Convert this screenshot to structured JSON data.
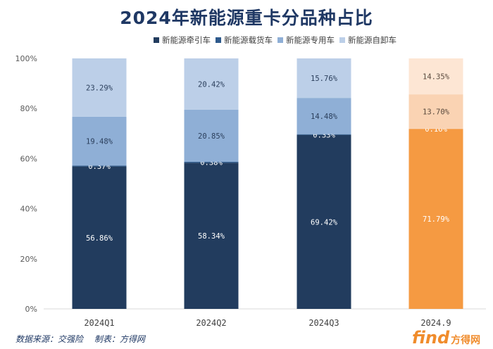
{
  "title": "2024年新能源重卡分品种占比",
  "source": {
    "data_label": "数据来源：交强险",
    "made_label": "制表：方得网"
  },
  "watermark": {
    "brand": "find",
    "cn": "方得网"
  },
  "colors": {
    "tractor": "#223c5e",
    "cargo": "#2e5a8c",
    "special": "#8fafd6",
    "dump": "#bccfe8",
    "highlight_tractor": "#f59a42",
    "highlight_cargo": "#f5ae72",
    "highlight_special": "#fad3b3",
    "highlight_dump": "#fde6d4"
  },
  "chart_data": {
    "type": "bar",
    "stacked": true,
    "title": "2024年新能源重卡分品种占比",
    "categories": [
      "2024Q1",
      "2024Q2",
      "2024Q3",
      "2024.9"
    ],
    "series": [
      {
        "name": "新能源牵引车",
        "values": [
          56.86,
          58.34,
          69.42,
          71.79
        ],
        "labels": [
          "56.86%",
          "58.34%",
          "69.42%",
          "71.79%"
        ]
      },
      {
        "name": "新能源载货车",
        "values": [
          0.37,
          0.38,
          0.33,
          0.16
        ],
        "labels": [
          "0.37%",
          "0.38%",
          "0.33%",
          "0.16%"
        ]
      },
      {
        "name": "新能源专用车",
        "values": [
          19.48,
          20.85,
          14.48,
          13.7
        ],
        "labels": [
          "19.48%",
          "20.85%",
          "14.48%",
          "13.70%"
        ]
      },
      {
        "name": "新能源自卸车",
        "values": [
          23.29,
          20.42,
          15.76,
          14.35
        ],
        "labels": [
          "23.29%",
          "20.42%",
          "15.76%",
          "14.35%"
        ]
      }
    ],
    "y_ticks": [
      "0%",
      "20%",
      "40%",
      "60%",
      "80%",
      "100%"
    ],
    "ylim": [
      0,
      100
    ],
    "grid": false,
    "legend_position": "top",
    "highlighted_category": "2024.9"
  }
}
